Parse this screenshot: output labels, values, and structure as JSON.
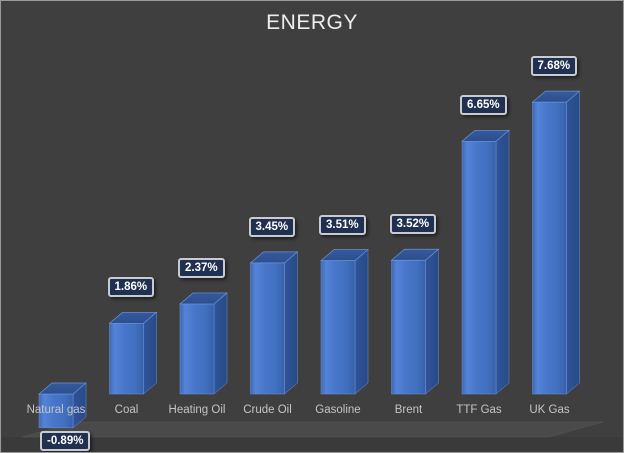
{
  "title": "ENERGY",
  "colors": {
    "background": "#3F3F3F",
    "floor": "#4A4A4A",
    "below_floor": "#3A3A3A",
    "bar_front": "#4472C4",
    "bar_front_highlight": "#5483D8",
    "bar_front_shade": "#3760A9",
    "bar_side": "#2C5090",
    "bar_top": "#2F5496",
    "bar_edge": "#6C93D6",
    "data_label_fill": "#1F3050",
    "data_label_border": "#C8CCD2",
    "data_label_text": "#FFFFFF",
    "category_text": "#C4C4C4",
    "title_text": "#EDEDED",
    "frame_border": "#9A9A9A"
  },
  "chart_data": {
    "type": "bar",
    "style": "3d-column",
    "title": "ENERGY",
    "categories": [
      "Natural gas",
      "Coal",
      "Heating Oil",
      "Crude Oil",
      "Gasoline",
      "Brent",
      "TTF Gas",
      "UK Gas"
    ],
    "values": [
      -0.89,
      1.86,
      2.37,
      3.45,
      3.51,
      3.52,
      6.65,
      7.68
    ],
    "data_labels": [
      "-0.89%",
      "1.86%",
      "2.37%",
      "3.45%",
      "3.51%",
      "3.52%",
      "6.65%",
      "7.68%"
    ],
    "unit": "%",
    "xlabel": "",
    "ylabel": "",
    "ylim": [
      -1,
      8.5
    ],
    "grid": false,
    "legend": "none",
    "axis_labels_visible": false
  }
}
